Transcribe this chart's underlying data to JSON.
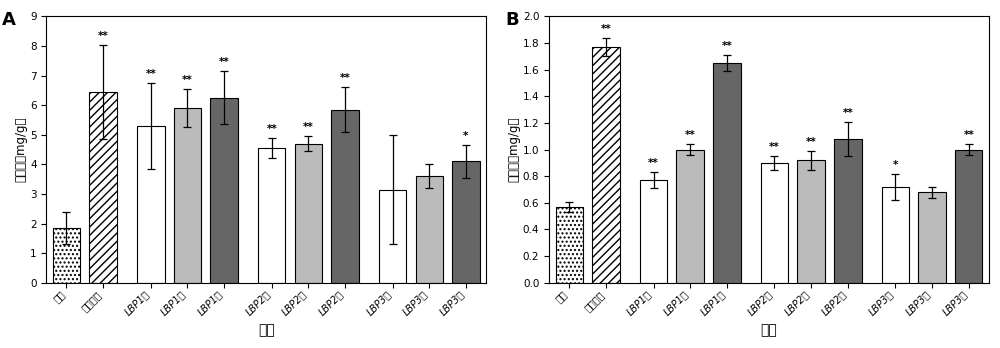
{
  "chart_A": {
    "title": "A",
    "ylabel": "肝糖原（mg/g）",
    "xlabel": "组别",
    "ylim": [
      0,
      9
    ],
    "yticks": [
      0,
      1,
      2,
      3,
      4,
      5,
      6,
      7,
      8,
      9
    ],
    "categories": [
      "空白",
      "阳性对照",
      "LBP1低",
      "LBP1中",
      "LBP1高",
      "LBP2低",
      "LBP2中",
      "LBP2高",
      "LBP3低",
      "LBP3中",
      "LBP3高"
    ],
    "values": [
      1.85,
      6.45,
      5.3,
      5.9,
      6.25,
      4.55,
      4.7,
      5.85,
      3.15,
      3.6,
      4.1
    ],
    "errors": [
      0.55,
      1.6,
      1.45,
      0.65,
      0.9,
      0.35,
      0.25,
      0.75,
      1.85,
      0.4,
      0.55
    ],
    "sig_labels": [
      "",
      "**",
      "**",
      "**",
      "**",
      "**",
      "**",
      "**",
      "",
      "",
      "*"
    ],
    "bar_facecolors": [
      "#ffffff",
      "#ffffff",
      "#ffffff",
      "#bbbbbb",
      "#666666",
      "#ffffff",
      "#bbbbbb",
      "#666666",
      "#ffffff",
      "#bbbbbb",
      "#666666"
    ],
    "bar_hatches": [
      "....",
      "////",
      "",
      "",
      "",
      "",
      "",
      "",
      "",
      "",
      ""
    ]
  },
  "chart_B": {
    "title": "B",
    "ylabel": "肌糖原（mg/g）",
    "xlabel": "组别",
    "ylim": [
      0.0,
      2.0
    ],
    "yticks": [
      0.0,
      0.2,
      0.4,
      0.6,
      0.8,
      1.0,
      1.2,
      1.4,
      1.6,
      1.8,
      2.0
    ],
    "categories": [
      "空白",
      "阳性对照",
      "LBP1低",
      "LBP1中",
      "LBP1高",
      "LBP2低",
      "LBP2中",
      "LBP2高",
      "LBP3低",
      "LBP3中",
      "LBP3高"
    ],
    "values": [
      0.57,
      1.77,
      0.77,
      1.0,
      1.65,
      0.9,
      0.92,
      1.08,
      0.72,
      0.68,
      1.0
    ],
    "errors": [
      0.04,
      0.07,
      0.06,
      0.04,
      0.06,
      0.05,
      0.07,
      0.13,
      0.1,
      0.04,
      0.04
    ],
    "sig_labels": [
      "",
      "**",
      "**",
      "**",
      "**",
      "**",
      "**",
      "**",
      "*",
      "",
      "**"
    ],
    "bar_facecolors": [
      "#ffffff",
      "#ffffff",
      "#ffffff",
      "#bbbbbb",
      "#666666",
      "#ffffff",
      "#bbbbbb",
      "#666666",
      "#ffffff",
      "#bbbbbb",
      "#666666"
    ],
    "bar_hatches": [
      "....",
      "////",
      "",
      "",
      "",
      "",
      "",
      "",
      "",
      "",
      ""
    ]
  },
  "positions": [
    0,
    1,
    2.3,
    3.3,
    4.3,
    5.6,
    6.6,
    7.6,
    8.9,
    9.9,
    10.9
  ],
  "bar_width": 0.75,
  "fig_width": 10.0,
  "fig_height": 3.48,
  "dpi": 100
}
